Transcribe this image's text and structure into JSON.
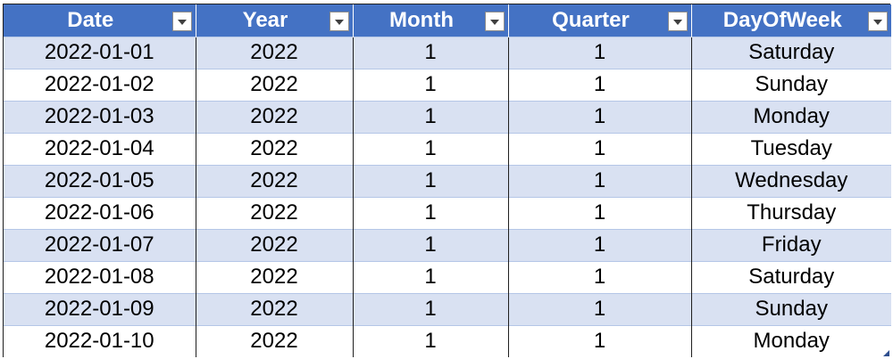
{
  "table": {
    "columns": [
      "Date",
      "Year",
      "Month",
      "Quarter",
      "DayOfWeek"
    ],
    "rows": [
      [
        "2022-01-01",
        "2022",
        "1",
        "1",
        "Saturday"
      ],
      [
        "2022-01-02",
        "2022",
        "1",
        "1",
        "Sunday"
      ],
      [
        "2022-01-03",
        "2022",
        "1",
        "1",
        "Monday"
      ],
      [
        "2022-01-04",
        "2022",
        "1",
        "1",
        "Tuesday"
      ],
      [
        "2022-01-05",
        "2022",
        "1",
        "1",
        "Wednesday"
      ],
      [
        "2022-01-06",
        "2022",
        "1",
        "1",
        "Thursday"
      ],
      [
        "2022-01-07",
        "2022",
        "1",
        "1",
        "Friday"
      ],
      [
        "2022-01-08",
        "2022",
        "1",
        "1",
        "Saturday"
      ],
      [
        "2022-01-09",
        "2022",
        "1",
        "1",
        "Sunday"
      ],
      [
        "2022-01-10",
        "2022",
        "1",
        "1",
        "Monday"
      ]
    ]
  },
  "colors": {
    "header_bg": "#4472c4",
    "header_text": "#ffffff",
    "band_row": "#d9e1f2",
    "plain_row": "#ffffff"
  },
  "icons": {
    "filter": "chevron-down-icon",
    "resize": "resize-handle-icon"
  }
}
